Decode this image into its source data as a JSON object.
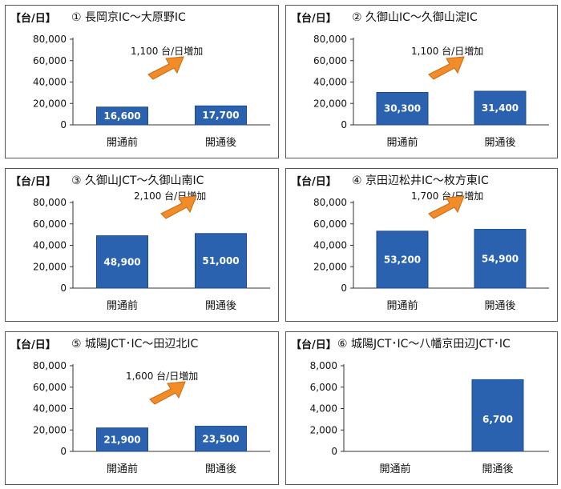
{
  "unit_label": "【台/日】",
  "chart_data": [
    {
      "type": "bar",
      "title": "① 長岡京IC～大原野IC",
      "categories": [
        "開通前",
        "開通後"
      ],
      "values": [
        16600,
        17700
      ],
      "value_labels": [
        "16,600",
        "17,700"
      ],
      "ylim": [
        0,
        80000
      ],
      "yticks": [
        0,
        20000,
        40000,
        60000,
        80000
      ],
      "ytick_labels": [
        "0",
        "20,000",
        "40,000",
        "60,000",
        "80,000"
      ],
      "annotation": "1,100 台/日増加",
      "bar_color": "#2a62b0",
      "arrow_color": "#f28c28",
      "grid": false
    },
    {
      "type": "bar",
      "title": "② 久御山IC～久御山淀IC",
      "categories": [
        "開通前",
        "開通後"
      ],
      "values": [
        30300,
        31400
      ],
      "value_labels": [
        "30,300",
        "31,400"
      ],
      "ylim": [
        0,
        80000
      ],
      "yticks": [
        0,
        20000,
        40000,
        60000,
        80000
      ],
      "ytick_labels": [
        "0",
        "20,000",
        "40,000",
        "60,000",
        "80,000"
      ],
      "annotation": "1,100 台/日増加",
      "bar_color": "#2a62b0",
      "arrow_color": "#f28c28",
      "grid": false
    },
    {
      "type": "bar",
      "title": "③ 久御山JCT～久御山南IC",
      "categories": [
        "開通前",
        "開通後"
      ],
      "values": [
        48900,
        51000
      ],
      "value_labels": [
        "48,900",
        "51,000"
      ],
      "ylim": [
        0,
        80000
      ],
      "yticks": [
        0,
        20000,
        40000,
        60000,
        80000
      ],
      "ytick_labels": [
        "0",
        "20,000",
        "40,000",
        "60,000",
        "80,000"
      ],
      "annotation": "2,100 台/日増加",
      "bar_color": "#2a62b0",
      "arrow_color": "#f28c28",
      "grid": false
    },
    {
      "type": "bar",
      "title": "④ 京田辺松井IC～枚方東IC",
      "categories": [
        "開通前",
        "開通後"
      ],
      "values": [
        53200,
        54900
      ],
      "value_labels": [
        "53,200",
        "54,900"
      ],
      "ylim": [
        0,
        80000
      ],
      "yticks": [
        0,
        20000,
        40000,
        60000,
        80000
      ],
      "ytick_labels": [
        "0",
        "20,000",
        "40,000",
        "60,000",
        "80,000"
      ],
      "annotation": "1,700 台/日増加",
      "bar_color": "#2a62b0",
      "arrow_color": "#f28c28",
      "grid": false
    },
    {
      "type": "bar",
      "title": "⑤ 城陽JCT･IC～田辺北IC",
      "categories": [
        "開通前",
        "開通後"
      ],
      "values": [
        21900,
        23500
      ],
      "value_labels": [
        "21,900",
        "23,500"
      ],
      "ylim": [
        0,
        80000
      ],
      "yticks": [
        0,
        20000,
        40000,
        60000,
        80000
      ],
      "ytick_labels": [
        "0",
        "20,000",
        "40,000",
        "60,000",
        "80,000"
      ],
      "annotation": "1,600 台/日増加",
      "bar_color": "#2a62b0",
      "arrow_color": "#f28c28",
      "grid": false
    },
    {
      "type": "bar",
      "title": "⑥ 城陽JCT･IC～八幡京田辺JCT･IC",
      "categories": [
        "開通前",
        "開通後"
      ],
      "values": [
        null,
        6700
      ],
      "value_labels": [
        "",
        "6,700"
      ],
      "ylim": [
        0,
        8000
      ],
      "yticks": [
        0,
        2000,
        4000,
        6000,
        8000
      ],
      "ytick_labels": [
        "0",
        "2,000",
        "4,000",
        "6,000",
        "8,000"
      ],
      "annotation": "",
      "bar_color": "#2a62b0",
      "arrow_color": "#f28c28",
      "grid": false
    }
  ]
}
